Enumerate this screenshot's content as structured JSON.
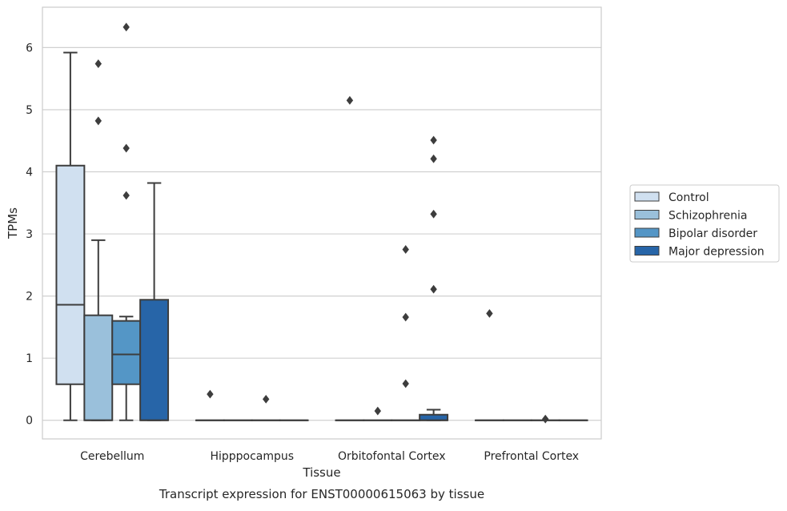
{
  "chart_data": {
    "type": "box",
    "title": "Transcript expression for ENST00000615063 by tissue",
    "xlabel": "Tissue",
    "ylabel": "TPMs",
    "ylim": [
      -0.3,
      6.65
    ],
    "yticks": [
      0,
      1,
      2,
      3,
      4,
      5,
      6
    ],
    "grid": true,
    "legend_position": "right",
    "categories": [
      "Cerebellum",
      "Hipppocampus",
      "Orbitofontal Cortex",
      "Prefrontal Cortex"
    ],
    "series": [
      {
        "name": "Control",
        "color": "#d0e0f0",
        "boxes": [
          {
            "whislo": 0.0,
            "q1": 0.58,
            "med": 1.86,
            "q3": 4.1,
            "whishi": 5.92,
            "fliers": []
          },
          {
            "whislo": 0.0,
            "q1": 0.0,
            "med": 0.0,
            "q3": 0.0,
            "whishi": 0.0,
            "fliers": [
              0.42
            ]
          },
          {
            "whislo": 0.0,
            "q1": 0.0,
            "med": 0.0,
            "q3": 0.0,
            "whishi": 0.0,
            "fliers": [
              5.15
            ]
          },
          {
            "whislo": 0.0,
            "q1": 0.0,
            "med": 0.0,
            "q3": 0.0,
            "whishi": 0.0,
            "fliers": [
              1.72
            ]
          }
        ]
      },
      {
        "name": "Schizophrenia",
        "color": "#9ac0db",
        "boxes": [
          {
            "whislo": 0.0,
            "q1": 0.0,
            "med": 0.0,
            "q3": 1.69,
            "whishi": 2.9,
            "fliers": [
              5.74,
              4.82
            ]
          },
          {
            "whislo": 0.0,
            "q1": 0.0,
            "med": 0.0,
            "q3": 0.0,
            "whishi": 0.0,
            "fliers": []
          },
          {
            "whislo": 0.0,
            "q1": 0.0,
            "med": 0.0,
            "q3": 0.0,
            "whishi": 0.0,
            "fliers": [
              0.15
            ]
          },
          {
            "whislo": 0.0,
            "q1": 0.0,
            "med": 0.0,
            "q3": 0.0,
            "whishi": 0.0,
            "fliers": []
          }
        ]
      },
      {
        "name": "Bipolar disorder",
        "color": "#5496c6",
        "boxes": [
          {
            "whislo": 0.0,
            "q1": 0.58,
            "med": 1.06,
            "q3": 1.6,
            "whishi": 1.67,
            "fliers": [
              6.33,
              4.38,
              3.62
            ]
          },
          {
            "whislo": 0.0,
            "q1": 0.0,
            "med": 0.0,
            "q3": 0.0,
            "whishi": 0.0,
            "fliers": [
              0.34
            ]
          },
          {
            "whislo": 0.0,
            "q1": 0.0,
            "med": 0.0,
            "q3": 0.0,
            "whishi": 0.0,
            "fliers": [
              2.75,
              1.66,
              0.59
            ]
          },
          {
            "whislo": 0.0,
            "q1": 0.0,
            "med": 0.0,
            "q3": 0.0,
            "whishi": 0.0,
            "fliers": [
              0.02
            ]
          }
        ]
      },
      {
        "name": "Major depression",
        "color": "#2765a8",
        "boxes": [
          {
            "whislo": 0.0,
            "q1": 0.0,
            "med": 0.0,
            "q3": 1.94,
            "whishi": 3.82,
            "fliers": []
          },
          {
            "whislo": 0.0,
            "q1": 0.0,
            "med": 0.0,
            "q3": 0.0,
            "whishi": 0.0,
            "fliers": []
          },
          {
            "whislo": 0.0,
            "q1": 0.0,
            "med": 0.0,
            "q3": 0.09,
            "whishi": 0.17,
            "fliers": [
              4.51,
              4.21,
              3.32,
              2.11
            ]
          },
          {
            "whislo": 0.0,
            "q1": 0.0,
            "med": 0.0,
            "q3": 0.0,
            "whishi": 0.0,
            "fliers": []
          }
        ]
      }
    ],
    "colors": {
      "grid": "#d0d0d0",
      "frame": "#cccccc",
      "stroke": "#3d3d3d",
      "text": "#262626"
    }
  }
}
